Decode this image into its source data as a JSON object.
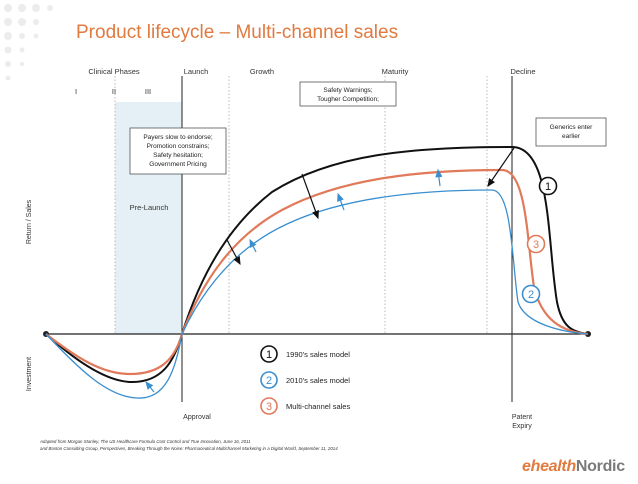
{
  "slide": {
    "title": "Product lifecycle – Multi-channel sales"
  },
  "phases": {
    "clinical": "Clinical Phases",
    "launch": "Launch",
    "growth": "Growth",
    "maturity": "Maturity",
    "decline": "Decline",
    "roman": [
      "I",
      "II",
      "III"
    ]
  },
  "axes": {
    "return_sales": "Return / Sales",
    "investment": "Investment"
  },
  "labels": {
    "pre_launch": "Pre-Launch",
    "approval": "Approval",
    "patent": "Patent",
    "expiry": "Expiry"
  },
  "callouts": {
    "payers": [
      "Payers slow to endorse;",
      "Promotion constrains;",
      "Safety hesitation;",
      "Government Pricing"
    ],
    "safety": [
      "Safety Warnings;",
      "Tougher Competition;"
    ],
    "generics": [
      "Generics enter",
      "earlier"
    ]
  },
  "legend": [
    {
      "num": "1",
      "label": "1990's sales model",
      "color": "#111111"
    },
    {
      "num": "2",
      "label": "2010's sales model",
      "color": "#3a8fd0"
    },
    {
      "num": "3",
      "label": "Multi-channel sales",
      "color": "#e07a5a"
    }
  ],
  "footnote": [
    "Adapted from Morgan Stanley, The US Healthcare Formula Cost Control and True Innovation, June 16, 2011",
    "and Boston Consulting Group, Perspectives, Breaking Through the Noise: Pharmaceutical Multichannel Marketing in a Digital World, September 11, 2014"
  ],
  "logo": {
    "part1": "ehealth",
    "part2": "Nordic"
  },
  "colors": {
    "accent": "#e07a3f",
    "black": "#111111",
    "blue": "#3a8fd0",
    "orange": "#e07a5a",
    "prelaunch_bg": "#e4eff6"
  }
}
